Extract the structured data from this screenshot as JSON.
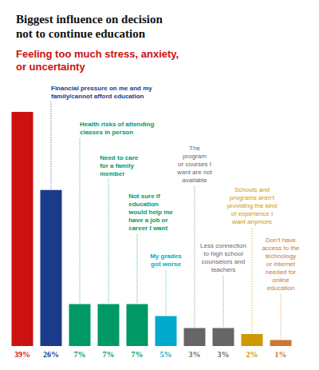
{
  "chart_data": {
    "type": "bar",
    "title": "Biggest influence on decision\nnot to continue education",
    "subtitle": "Feeling too much stress, anxiety,\nor uncertainty",
    "categories": [
      null,
      "Financial pressure on me and my\nfamily/cannot afford education",
      "Health risks of attending\nclasses in person",
      "Need to care\nfor a family\nmember",
      "Not sure if\neducation\nwould help me\nhave a job or\ncareer I want",
      "My grades\ngot worse",
      "The\nprogram\nor courses I\nwant are not\navailable",
      "Less connection\nto high school\ncounselors and\nteachers",
      "Schools and\nprograms aren't\nproviding the kind\nof experience I\nwant anymore",
      "Don't have\naccess to the\ntechnology\nor internet\nneeded for\nonline\neducation"
    ],
    "values": [
      39,
      26,
      7,
      7,
      7,
      5,
      3,
      3,
      2,
      1
    ],
    "value_labels": [
      "39%",
      "26%",
      "7%",
      "7%",
      "7%",
      "5%",
      "3%",
      "3%",
      "2%",
      "1%"
    ],
    "colors": [
      "#cc1111",
      "#1a3a8c",
      "#009966",
      "#009966",
      "#009966",
      "#00aacc",
      "#666666",
      "#666666",
      "#cc9900",
      "#cc7733"
    ],
    "ylim": [
      0,
      45
    ],
    "grid": false,
    "tick_labels": false,
    "data_labels": true
  }
}
